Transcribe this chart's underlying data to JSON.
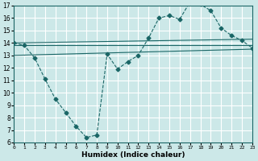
{
  "xlabel": "Humidex (Indice chaleur)",
  "bg_color": "#cce8e8",
  "line_color": "#1a6666",
  "grid_color": "#ffffff",
  "xlim": [
    0,
    23
  ],
  "ylim": [
    6,
    17
  ],
  "xticks": [
    0,
    1,
    2,
    3,
    4,
    5,
    6,
    7,
    8,
    9,
    10,
    11,
    12,
    13,
    14,
    15,
    16,
    17,
    18,
    19,
    20,
    21,
    22,
    23
  ],
  "yticks": [
    6,
    7,
    8,
    9,
    10,
    11,
    12,
    13,
    14,
    15,
    16,
    17
  ],
  "line1_x": [
    0,
    1,
    2,
    3,
    4,
    5,
    6,
    7,
    8,
    9,
    10,
    11,
    12,
    13,
    14,
    15,
    16,
    17,
    18,
    19,
    20,
    21,
    22,
    23
  ],
  "line1_y": [
    14.0,
    13.8,
    12.8,
    11.1,
    9.5,
    8.4,
    7.3,
    6.4,
    6.6,
    13.1,
    11.9,
    12.5,
    13.0,
    14.4,
    16.0,
    16.2,
    15.9,
    17.3,
    17.1,
    16.6,
    15.2,
    14.6,
    14.2,
    13.6
  ],
  "line2_x": [
    0,
    23
  ],
  "line2_y": [
    14.0,
    14.3
  ],
  "line3_x": [
    0,
    23
  ],
  "line3_y": [
    13.8,
    13.8
  ],
  "line4_x": [
    0,
    23
  ],
  "line4_y": [
    13.0,
    13.5
  ],
  "marker": "D",
  "markersize": 2.5
}
